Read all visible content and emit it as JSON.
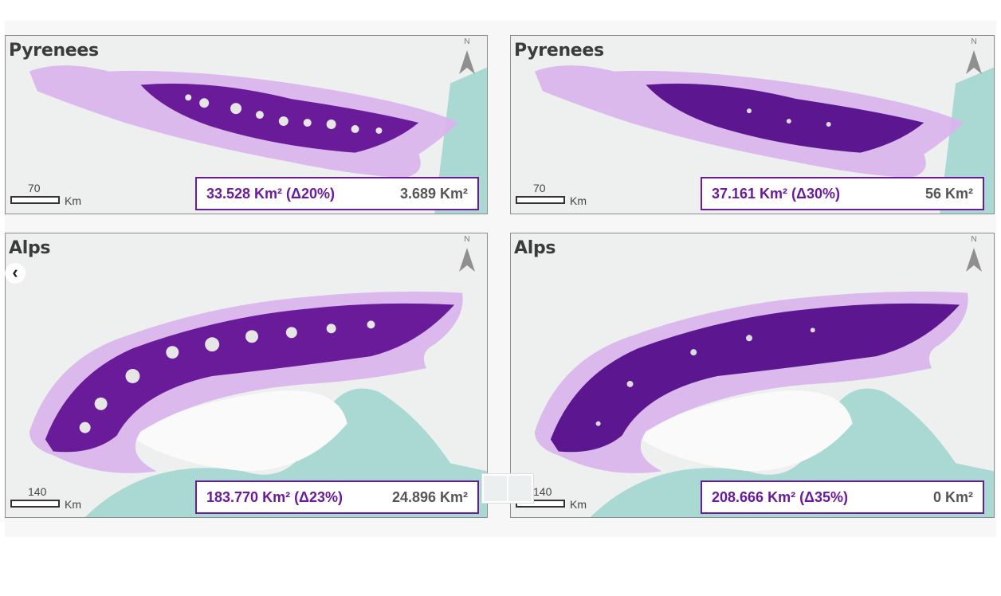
{
  "panels": [
    {
      "title": "Pyrenees",
      "north": "N",
      "scale": {
        "value": "70",
        "unit": "Km"
      },
      "stat_primary": "33.528 Km² (Δ20%)",
      "stat_secondary": "3.689 Km²",
      "fill_level": "partial"
    },
    {
      "title": "Pyrenees",
      "north": "N",
      "scale": {
        "value": "70",
        "unit": "Km"
      },
      "stat_primary": "37.161 Km² (Δ30%)",
      "stat_secondary": "56 Km²",
      "fill_level": "full"
    },
    {
      "title": "Alps",
      "north": "N",
      "scale": {
        "value": "140",
        "unit": "Km"
      },
      "stat_primary": "183.770 Km² (Δ23%)",
      "stat_secondary": "24.896 Km²",
      "fill_level": "partial"
    },
    {
      "title": "Alps",
      "north": "N",
      "scale": {
        "value": "140",
        "unit": "Km"
      },
      "stat_primary": "208.666 Km² (Δ35%)",
      "stat_secondary": "0 Km²",
      "fill_level": "full"
    }
  ],
  "colors": {
    "buffer": "#d9b5ec",
    "core": "#6a1b9a",
    "snow": "#e9e9e9",
    "sea": "#a9d9d2",
    "frame": "#8c8c8c"
  },
  "nav": {
    "prev_icon": "chevron-left-icon"
  }
}
